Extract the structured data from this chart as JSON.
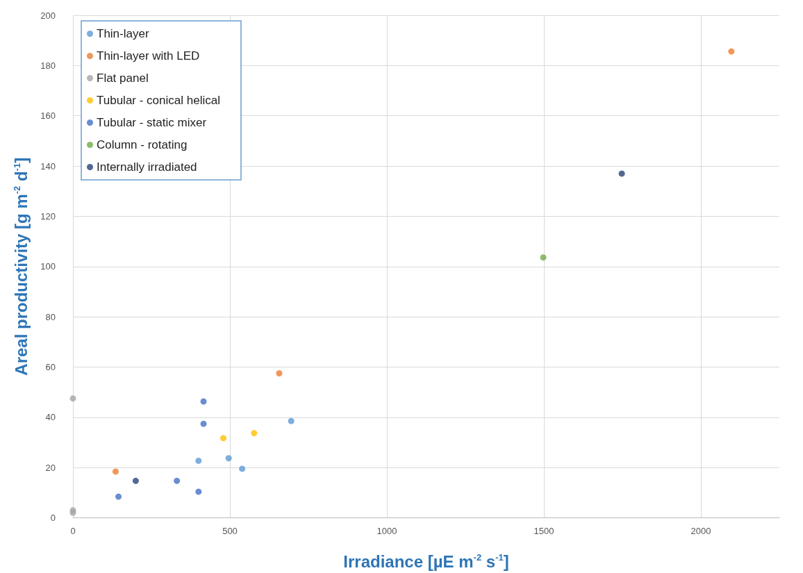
{
  "chart_data": {
    "type": "scatter",
    "xlabel": "Irradiance [µE m$^{-2}$ s$^{-1}$]",
    "ylabel": "Areal productivity [g m$^{-2}$ d$^{-1}$]",
    "series": [
      {
        "name": "Thin-layer",
        "color": "#5b9bd5",
        "x": [
          400,
          496,
          539,
          695
        ],
        "values": [
          22.7,
          23.7,
          19.5,
          38.5
        ]
      },
      {
        "name": "Thin-layer with LED",
        "color": "#ed7d31",
        "x": [
          136,
          657,
          2097
        ],
        "values": [
          18.4,
          57.5,
          185.6
        ]
      },
      {
        "name": "Flat panel",
        "color": "#a5a5a5",
        "x": [
          0,
          0,
          0
        ],
        "values": [
          47.5,
          2,
          3
        ]
      },
      {
        "name": "Tubular - conical helical",
        "color": "#ffc000",
        "x": [
          479,
          577
        ],
        "values": [
          31.7,
          33.7
        ]
      },
      {
        "name": "Tubular - static mixer",
        "color": "#4472c4",
        "x": [
          145,
          331,
          400,
          416,
          416
        ],
        "values": [
          8.4,
          14.7,
          10.4,
          46.3,
          37.4
        ]
      },
      {
        "name": "Column - rotating",
        "color": "#70ad47",
        "x": [
          1498
        ],
        "values": [
          103.6
        ]
      },
      {
        "name": "Internally irradiated",
        "color": "#264478",
        "x": [
          200,
          1748
        ],
        "values": [
          14.7,
          137
        ]
      }
    ],
    "xlim": [
      0,
      2250
    ],
    "xticks": [
      0,
      500,
      1000,
      1500,
      2000
    ],
    "ylim": [
      0,
      200
    ],
    "yticks": [
      0,
      20,
      40,
      60,
      80,
      100,
      120,
      140,
      160,
      180,
      200
    ],
    "grid": true,
    "legend": "top left",
    "marker": "circle"
  }
}
